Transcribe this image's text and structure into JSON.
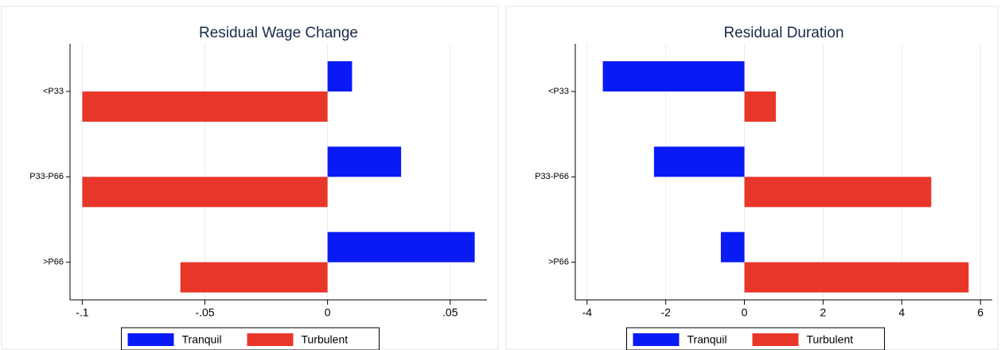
{
  "chart_data": [
    {
      "type": "hbar",
      "title": "Residual Wage Change",
      "categories": [
        "<P33",
        "P33-P66",
        ">P66"
      ],
      "series": [
        {
          "name": "Tranquil",
          "color": "#0a1af5",
          "values": [
            0.01,
            0.03,
            0.06
          ]
        },
        {
          "name": "Turbulent",
          "color": "#e8372a",
          "values": [
            -0.1,
            -0.1,
            -0.06
          ]
        }
      ],
      "xlim": [
        -0.105,
        0.065
      ],
      "xticks": [
        {
          "value": -0.1,
          "label": "-.1"
        },
        {
          "value": -0.05,
          "label": "-.05"
        },
        0,
        {
          "value": 0.05,
          "label": ".05"
        }
      ],
      "grid": true,
      "legend": "bottom"
    },
    {
      "type": "hbar",
      "title": "Residual Duration",
      "categories": [
        "<P33",
        "P33-P66",
        ">P66"
      ],
      "series": [
        {
          "name": "Tranquil",
          "color": "#0a1af5",
          "values": [
            -3.6,
            -2.3,
            -0.6
          ]
        },
        {
          "name": "Turbulent",
          "color": "#e8372a",
          "values": [
            0.8,
            4.75,
            5.7
          ]
        }
      ],
      "xlim": [
        -4.3,
        6.3
      ],
      "xticks": [
        -4,
        -2,
        0,
        2,
        4,
        6
      ],
      "grid": true,
      "legend": "bottom"
    }
  ]
}
